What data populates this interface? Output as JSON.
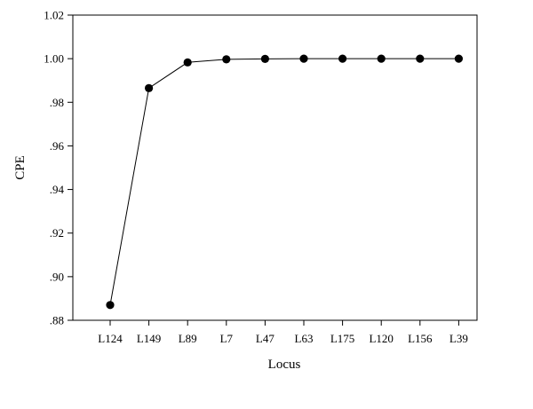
{
  "chart_data": {
    "type": "line",
    "title": "",
    "xlabel": "Locus",
    "ylabel": "CPE",
    "categories": [
      "L124",
      "L149",
      "L89",
      "L7",
      "L47",
      "L63",
      "L175",
      "L120",
      "L156",
      "L39"
    ],
    "values": [
      0.887,
      0.9865,
      0.9983,
      0.9997,
      0.9999,
      1.0,
      1.0,
      1.0,
      1.0,
      1.0
    ],
    "ylim": [
      0.88,
      1.02
    ],
    "yticks": [
      0.88,
      0.9,
      0.92,
      0.94,
      0.96,
      0.98,
      1.0,
      1.02
    ],
    "ytick_labels": [
      ".88",
      ".90",
      ".92",
      ".94",
      ".96",
      ".98",
      "1.00",
      "1.02"
    ],
    "grid": false,
    "legend": "none",
    "line_color": "#000000",
    "marker_color": "#000000"
  }
}
